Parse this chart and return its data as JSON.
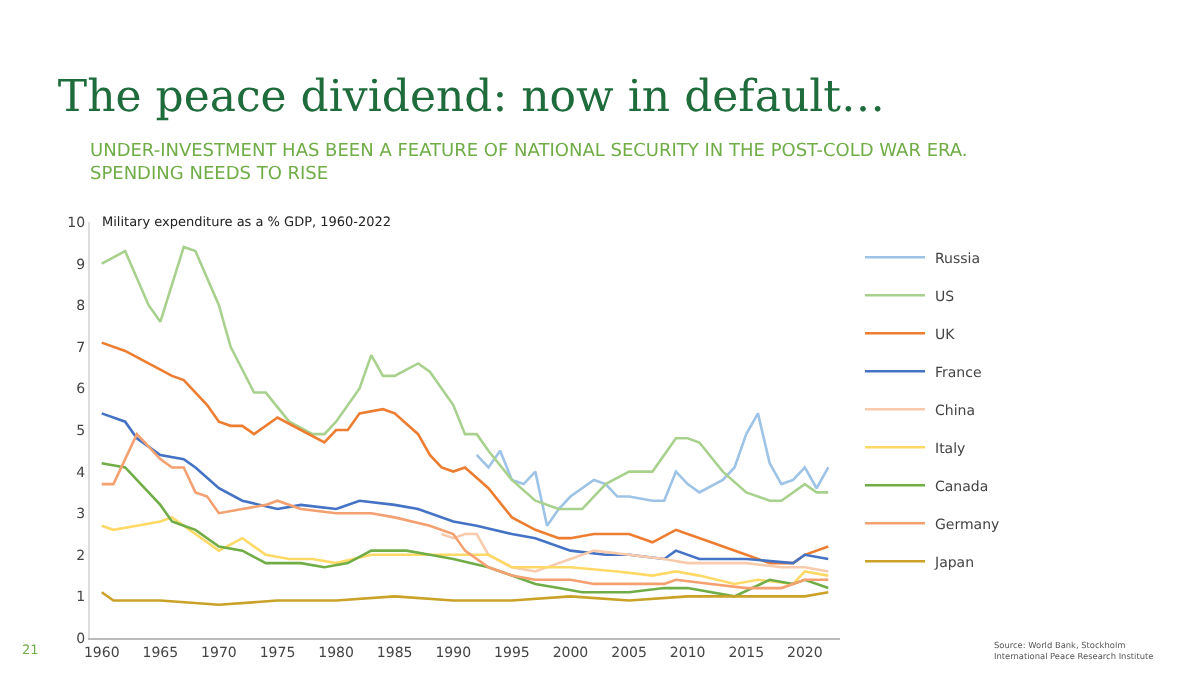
{
  "chart_data": {
    "type": "line",
    "title": "The peace dividend: now in default…",
    "subtitle": "UNDER-INVESTMENT HAS BEEN A FEATURE OF NATIONAL SECURITY IN THE POST-COLD WAR ERA.\nSPENDING NEEDS TO RISE",
    "annotations": [
      "Military expenditure as a % GDP, 1960-2022",
      "21",
      "Source: World Bank, Stockholm\nInternational Peace Research Institute"
    ],
    "xlim": [
      1959,
      2023
    ],
    "xticks": [
      1960,
      1965,
      1970,
      1975,
      1980,
      1985,
      1990,
      1995,
      2000,
      2005,
      2010,
      2015,
      2020
    ],
    "ylim": [
      0,
      10
    ],
    "yticks": [
      0,
      1,
      2,
      3,
      4,
      5,
      6,
      7,
      8,
      9,
      10
    ],
    "grid": false,
    "legend": "right",
    "marker": "none",
    "line_style": "solid",
    "series": [
      {
        "name": "Russia",
        "color": "#9dc3e6",
        "x": [
          1992,
          1993,
          1994,
          1995,
          1996,
          1997,
          1998,
          1999,
          2000,
          2002,
          2003,
          2004,
          2005,
          2007,
          2008,
          2009,
          2010,
          2011,
          2013,
          2014,
          2015,
          2016,
          2017,
          2018,
          2019,
          2020,
          2021,
          2022
        ],
        "values": [
          4.4,
          4.1,
          4.5,
          3.8,
          3.7,
          4.0,
          2.7,
          3.1,
          3.4,
          3.8,
          3.7,
          3.4,
          3.4,
          3.3,
          3.3,
          4.0,
          3.7,
          3.5,
          3.8,
          4.1,
          4.9,
          5.4,
          4.2,
          3.7,
          3.8,
          4.1,
          3.6,
          4.1
        ]
      },
      {
        "name": "US",
        "color": "#a9d18e",
        "x": [
          1960,
          1962,
          1964,
          1965,
          1967,
          1968,
          1970,
          1971,
          1973,
          1974,
          1976,
          1978,
          1979,
          1980,
          1982,
          1983,
          1984,
          1985,
          1987,
          1988,
          1990,
          1991,
          1992,
          1993,
          1995,
          1997,
          1999,
          2000,
          2001,
          2003,
          2005,
          2007,
          2009,
          2010,
          2011,
          2013,
          2015,
          2017,
          2018,
          2020,
          2021,
          2022
        ],
        "values": [
          9.0,
          9.3,
          8.0,
          7.6,
          9.4,
          9.3,
          8.0,
          7.0,
          5.9,
          5.9,
          5.2,
          4.9,
          4.9,
          5.2,
          6.0,
          6.8,
          6.3,
          6.3,
          6.6,
          6.4,
          5.6,
          4.9,
          4.9,
          4.5,
          3.8,
          3.3,
          3.1,
          3.1,
          3.1,
          3.7,
          4.0,
          4.0,
          4.8,
          4.8,
          4.7,
          4.0,
          3.5,
          3.3,
          3.3,
          3.7,
          3.5,
          3.5
        ]
      },
      {
        "name": "UK",
        "color": "#ed7d31",
        "x": [
          1960,
          1962,
          1964,
          1966,
          1967,
          1969,
          1970,
          1971,
          1972,
          1973,
          1975,
          1977,
          1979,
          1980,
          1981,
          1982,
          1984,
          1985,
          1987,
          1988,
          1989,
          1990,
          1991,
          1993,
          1995,
          1997,
          1999,
          2000,
          2002,
          2005,
          2007,
          2009,
          2010,
          2012,
          2015,
          2017,
          2019,
          2020,
          2022
        ],
        "values": [
          7.1,
          6.9,
          6.6,
          6.3,
          6.2,
          5.6,
          5.2,
          5.1,
          5.1,
          4.9,
          5.3,
          5.0,
          4.7,
          5.0,
          5.0,
          5.4,
          5.5,
          5.4,
          4.9,
          4.4,
          4.1,
          4.0,
          4.1,
          3.6,
          2.9,
          2.6,
          2.4,
          2.4,
          2.5,
          2.5,
          2.3,
          2.6,
          2.5,
          2.3,
          2.0,
          1.8,
          1.8,
          2.0,
          2.2
        ]
      },
      {
        "name": "France",
        "color": "#4472c4",
        "x": [
          1960,
          1962,
          1963,
          1965,
          1967,
          1968,
          1970,
          1972,
          1975,
          1977,
          1980,
          1982,
          1985,
          1987,
          1990,
          1992,
          1995,
          1997,
          2000,
          2003,
          2005,
          2008,
          2009,
          2011,
          2015,
          2019,
          2020,
          2022
        ],
        "values": [
          5.4,
          5.2,
          4.8,
          4.4,
          4.3,
          4.1,
          3.6,
          3.3,
          3.1,
          3.2,
          3.1,
          3.3,
          3.2,
          3.1,
          2.8,
          2.7,
          2.5,
          2.4,
          2.1,
          2.0,
          2.0,
          1.9,
          2.1,
          1.9,
          1.9,
          1.8,
          2.0,
          1.9
        ]
      },
      {
        "name": "China",
        "color": "#f8cbad",
        "x": [
          1989,
          1990,
          1991,
          1992,
          1993,
          1995,
          1997,
          1999,
          2000,
          2002,
          2005,
          2008,
          2010,
          2013,
          2015,
          2018,
          2020,
          2022
        ],
        "values": [
          2.5,
          2.4,
          2.5,
          2.5,
          2.0,
          1.7,
          1.6,
          1.8,
          1.9,
          2.1,
          2.0,
          1.9,
          1.8,
          1.8,
          1.8,
          1.7,
          1.7,
          1.6
        ]
      },
      {
        "name": "Italy",
        "color": "#ffd966",
        "x": [
          1960,
          1961,
          1963,
          1965,
          1966,
          1968,
          1970,
          1972,
          1974,
          1976,
          1978,
          1980,
          1983,
          1986,
          1990,
          1993,
          1995,
          1997,
          2000,
          2004,
          2007,
          2009,
          2011,
          2014,
          2016,
          2019,
          2020,
          2022
        ],
        "values": [
          2.7,
          2.6,
          2.7,
          2.8,
          2.9,
          2.5,
          2.1,
          2.4,
          2.0,
          1.9,
          1.9,
          1.8,
          2.0,
          2.0,
          2.0,
          2.0,
          1.7,
          1.7,
          1.7,
          1.6,
          1.5,
          1.6,
          1.5,
          1.3,
          1.4,
          1.3,
          1.6,
          1.5
        ]
      },
      {
        "name": "Canada",
        "color": "#70ad47",
        "x": [
          1960,
          1962,
          1963,
          1965,
          1966,
          1967,
          1968,
          1970,
          1972,
          1974,
          1975,
          1977,
          1979,
          1981,
          1983,
          1986,
          1988,
          1990,
          1993,
          1995,
          1997,
          1999,
          2001,
          2005,
          2008,
          2010,
          2014,
          2017,
          2019,
          2020,
          2022
        ],
        "values": [
          4.2,
          4.1,
          3.8,
          3.2,
          2.8,
          2.7,
          2.6,
          2.2,
          2.1,
          1.8,
          1.8,
          1.8,
          1.7,
          1.8,
          2.1,
          2.1,
          2.0,
          1.9,
          1.7,
          1.5,
          1.3,
          1.2,
          1.1,
          1.1,
          1.2,
          1.2,
          1.0,
          1.4,
          1.3,
          1.4,
          1.2
        ]
      },
      {
        "name": "Germany",
        "color": "#f4a070",
        "x": [
          1960,
          1961,
          1963,
          1965,
          1966,
          1967,
          1968,
          1969,
          1970,
          1972,
          1974,
          1975,
          1977,
          1980,
          1983,
          1985,
          1988,
          1990,
          1991,
          1993,
          1995,
          1997,
          2000,
          2002,
          2005,
          2008,
          2009,
          2012,
          2015,
          2018,
          2020,
          2022
        ],
        "values": [
          3.7,
          3.7,
          4.9,
          4.3,
          4.1,
          4.1,
          3.5,
          3.4,
          3.0,
          3.1,
          3.2,
          3.3,
          3.1,
          3.0,
          3.0,
          2.9,
          2.7,
          2.5,
          2.1,
          1.7,
          1.5,
          1.4,
          1.4,
          1.3,
          1.3,
          1.3,
          1.4,
          1.3,
          1.2,
          1.2,
          1.4,
          1.4
        ]
      },
      {
        "name": "Japan",
        "color": "#c9a227",
        "x": [
          1960,
          1961,
          1965,
          1970,
          1975,
          1980,
          1985,
          1990,
          1995,
          2000,
          2005,
          2010,
          2015,
          2020,
          2022
        ],
        "values": [
          1.1,
          0.9,
          0.9,
          0.8,
          0.9,
          0.9,
          1.0,
          0.9,
          0.9,
          1.0,
          0.9,
          1.0,
          1.0,
          1.0,
          1.1
        ]
      }
    ]
  }
}
